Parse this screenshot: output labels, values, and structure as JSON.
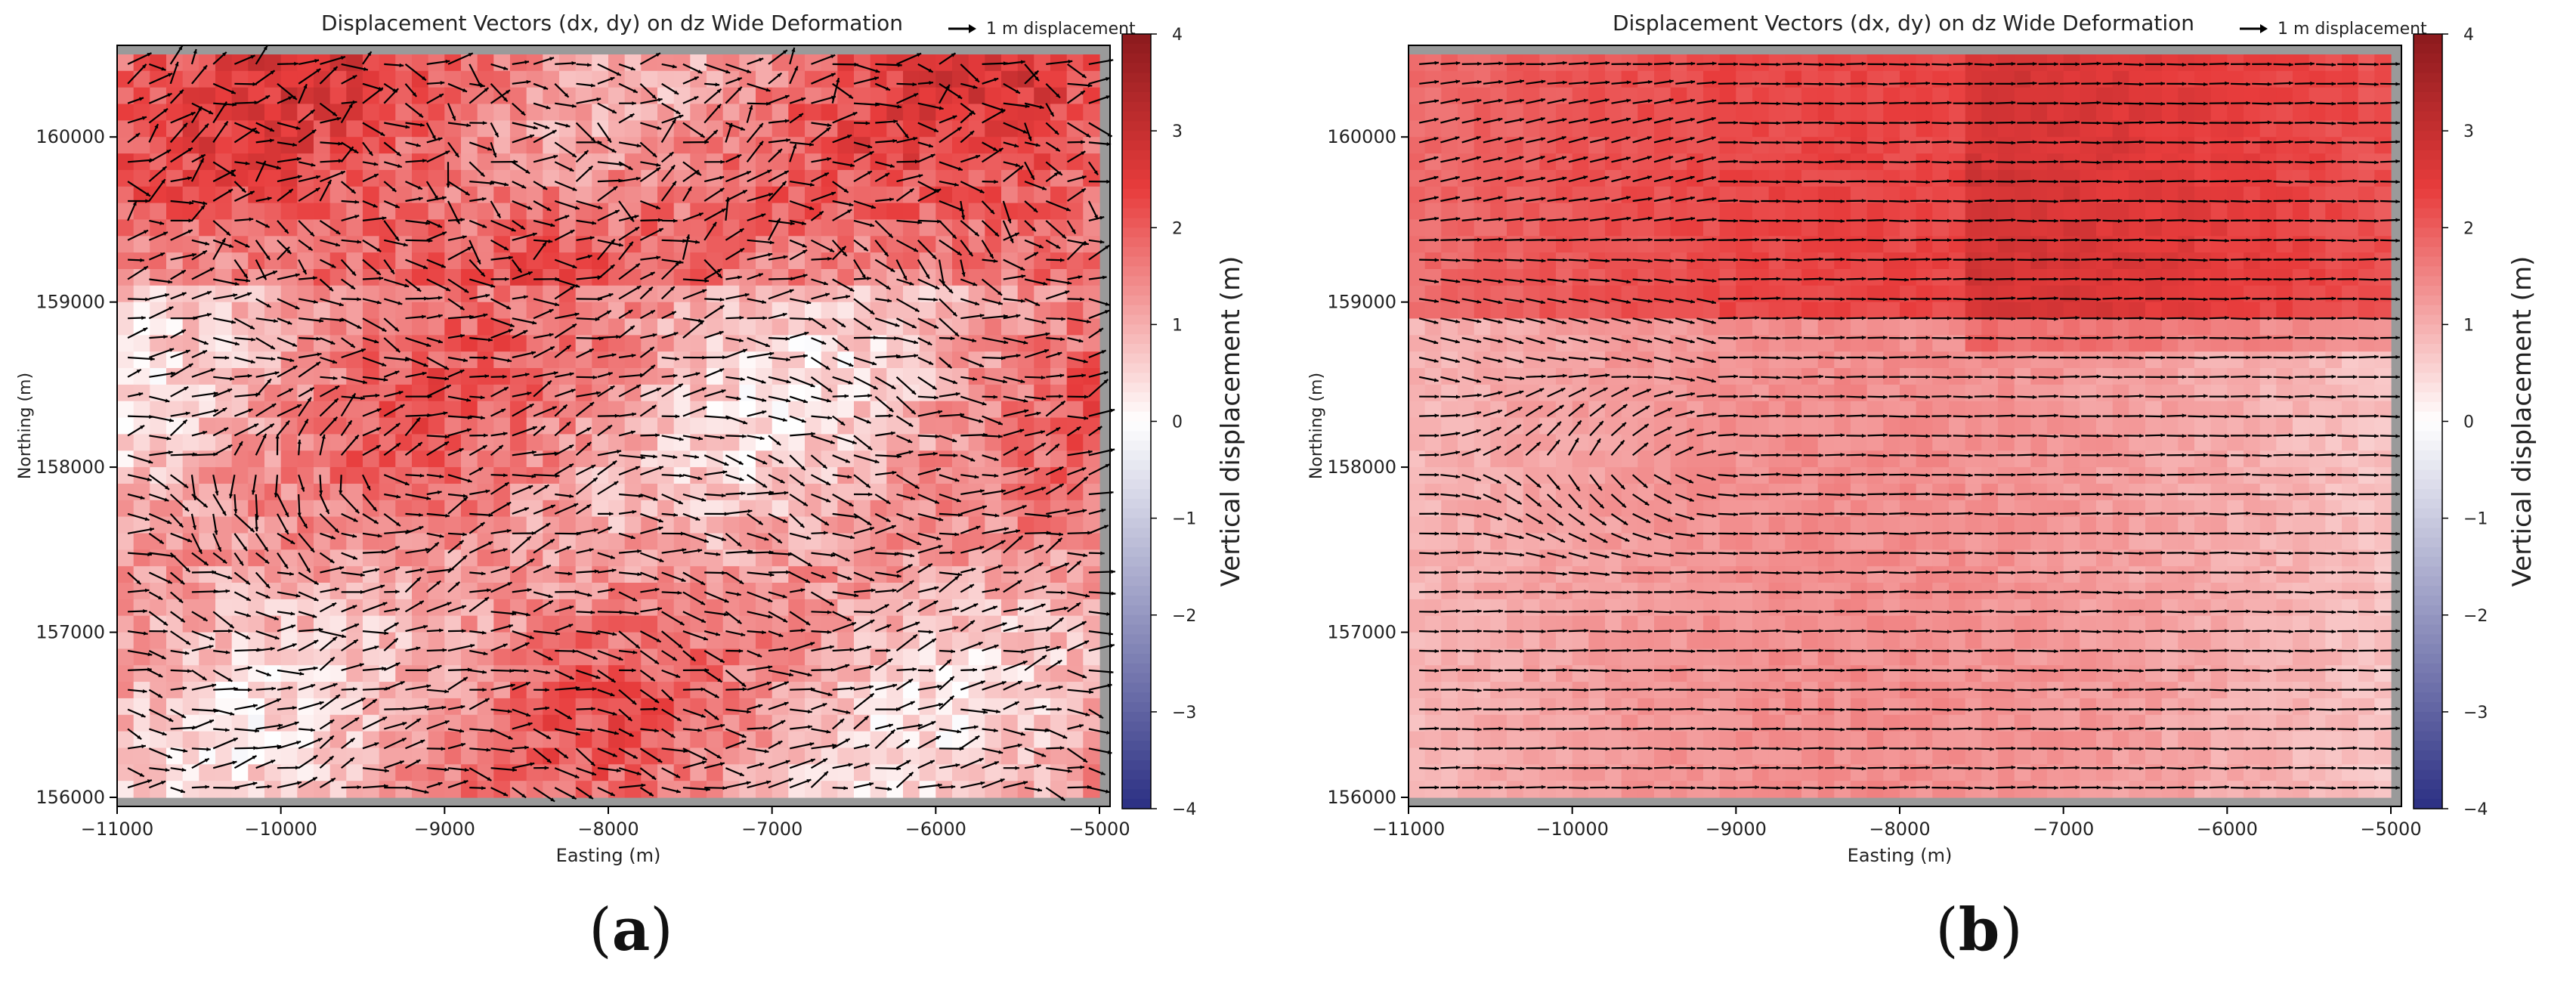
{
  "figure": {
    "panels": [
      {
        "label_open": "(",
        "label_letter": "a",
        "label_close": ")"
      },
      {
        "label_open": "(",
        "label_letter": "b",
        "label_close": ")"
      }
    ]
  },
  "colors": {
    "cmap_negative": "#2b2f83",
    "cmap_zero": "#ffffff",
    "cmap_positive": "#8b1a1d",
    "background_masked": "#9a9a9a",
    "arrow": "#000000"
  },
  "chart_data": [
    {
      "type": "quiver",
      "title": "Displacement Vectors (dx, dy) on dz Wide Deformation",
      "xlabel": "Easting (m)",
      "ylabel": "Northing (m)",
      "xlim": [
        -11000,
        -5000
      ],
      "ylim": [
        156000,
        160500
      ],
      "xticks": [
        -11000,
        -10000,
        -9000,
        -8000,
        -7000,
        -6000,
        -5000
      ],
      "yticks": [
        156000,
        157000,
        158000,
        159000,
        160000
      ],
      "quiver_key": "1 m displacement",
      "colorbar": {
        "label": "Vertical displacement (m)",
        "range": [
          -4,
          4
        ],
        "ticks": [
          -4,
          -3,
          -2,
          -1,
          0,
          1,
          2,
          3,
          4
        ],
        "colormap": "seismic"
      },
      "grid": false,
      "field_description": "turbulent field: mostly eastward vectors with swirls near -10200,158500 and large scatter",
      "mean_dx": 0.9,
      "mean_dy": 0.05,
      "dz_range_approx": [
        -0.5,
        2.5
      ]
    },
    {
      "type": "quiver",
      "title": "Displacement Vectors (dx, dy) on dz Wide Deformation",
      "xlabel": "Easting (m)",
      "ylabel": "Northing (m)",
      "xlim": [
        -11000,
        -5000
      ],
      "ylim": [
        156000,
        160500
      ],
      "xticks": [
        -11000,
        -10000,
        -9000,
        -8000,
        -7000,
        -6000,
        -5000
      ],
      "yticks": [
        156000,
        157000,
        158000,
        159000,
        160000
      ],
      "quiver_key": "1 m displacement",
      "colorbar": {
        "label": "Vertical displacement (m)",
        "range": [
          -4,
          4
        ],
        "ticks": [
          -4,
          -3,
          -2,
          -1,
          0,
          1,
          2,
          3,
          4
        ],
        "colormap": "seismic"
      },
      "grid": false,
      "field_description": "smooth field: nearly uniform eastward vectors with a curl near -10200,158800",
      "mean_dx": 1.0,
      "mean_dy": 0.0,
      "dz_range_approx": [
        0.5,
        2.5
      ]
    }
  ]
}
